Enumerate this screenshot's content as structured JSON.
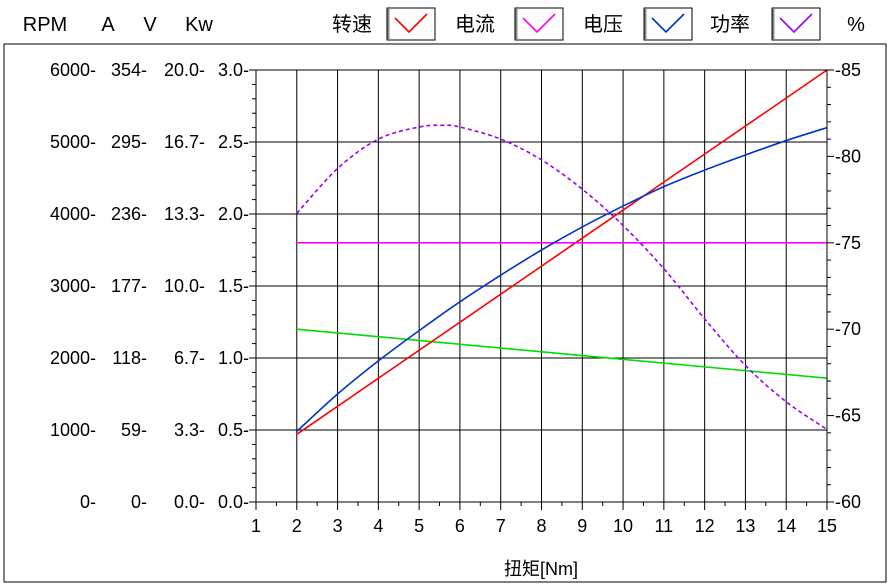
{
  "chart_data": {
    "type": "line",
    "xlabel": "扭矩[Nm]",
    "x_ticks": [
      "1",
      "2",
      "3",
      "4",
      "5",
      "6",
      "7",
      "8",
      "9",
      "10",
      "11",
      "12",
      "13",
      "14",
      "15"
    ],
    "xlim": [
      1,
      15
    ],
    "left_axis_units": [
      "RPM",
      "A",
      "V",
      "Kw"
    ],
    "left_axes": [
      {
        "unit": "RPM",
        "ticks": [
          "0",
          "1000",
          "2000",
          "3000",
          "4000",
          "5000",
          "6000"
        ]
      },
      {
        "unit": "A",
        "ticks": [
          "0",
          "59",
          "118",
          "177",
          "236",
          "295",
          "354"
        ]
      },
      {
        "unit": "V",
        "ticks": [
          "0.0",
          "3.3",
          "6.7",
          "10.0",
          "13.3",
          "16.7",
          "20.0"
        ]
      },
      {
        "unit": "Kw",
        "ticks": [
          "0.0",
          "0.5",
          "1.0",
          "1.5",
          "2.0",
          "2.5",
          "3.0"
        ]
      }
    ],
    "left_ylim": [
      0,
      6000
    ],
    "right_axis": {
      "unit": "%",
      "ticks": [
        "60",
        "65",
        "70",
        "75",
        "80",
        "85"
      ],
      "ylim": [
        60,
        85
      ]
    },
    "legend": [
      {
        "name": "转速",
        "color": "#00dd00"
      },
      {
        "name": "电流",
        "color": "#ff0000"
      },
      {
        "name": "电压",
        "color": "#ff00ff"
      },
      {
        "name": "功率",
        "color": "#0033cc"
      },
      {
        "name": "%",
        "color": "#9900ff"
      }
    ],
    "series": [
      {
        "name": "转速",
        "axis": "RPM",
        "color": "#00dd00",
        "style": "solid",
        "x": [
          2,
          15
        ],
        "y": [
          2400,
          1720
        ]
      },
      {
        "name": "电流",
        "axis": "RPM",
        "color": "#ff0000",
        "style": "solid",
        "x": [
          2,
          15
        ],
        "y": [
          940,
          6000
        ]
      },
      {
        "name": "电压",
        "axis": "RPM",
        "color": "#ff00ff",
        "style": "solid",
        "x": [
          2,
          15
        ],
        "y": [
          3600,
          3600
        ]
      },
      {
        "name": "功率",
        "axis": "RPM",
        "color": "#0033cc",
        "style": "solid",
        "x": [
          2,
          3,
          4,
          5,
          6,
          7,
          8,
          9,
          10,
          11,
          12,
          13,
          14,
          15
        ],
        "y": [
          980,
          1500,
          1960,
          2380,
          2780,
          3150,
          3500,
          3820,
          4110,
          4380,
          4610,
          4820,
          5020,
          5200
        ]
      },
      {
        "name": "%",
        "axis": "%",
        "color": "#9900ff",
        "style": "dashed",
        "x": [
          2,
          3,
          4,
          5,
          5.6,
          6,
          7,
          8,
          9,
          10,
          11,
          12,
          13,
          14,
          15
        ],
        "y": [
          76.7,
          79.3,
          81.0,
          81.7,
          81.8,
          81.7,
          81.0,
          79.8,
          78.1,
          76.0,
          73.5,
          70.6,
          67.9,
          65.8,
          64.2
        ]
      }
    ]
  }
}
